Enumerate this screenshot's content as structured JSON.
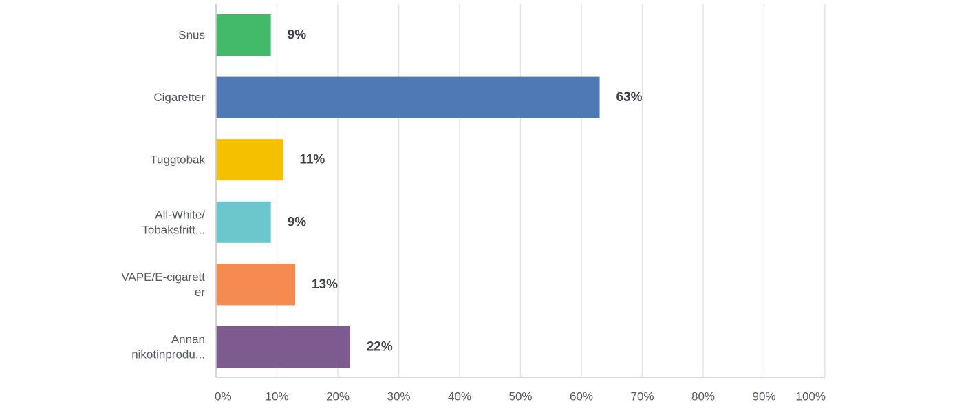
{
  "chart_data": {
    "type": "bar",
    "orientation": "horizontal",
    "categories": [
      [
        "Snus"
      ],
      [
        "Cigaretter"
      ],
      [
        "Tuggtobak"
      ],
      [
        "All-White/",
        "Tobaksfritt..."
      ],
      [
        "VAPE/E-cigarett",
        "er"
      ],
      [
        "Annan",
        "nikotinprodu..."
      ]
    ],
    "values": [
      9,
      63,
      11,
      9,
      13,
      22
    ],
    "data_labels": [
      "9%",
      "63%",
      "11%",
      "9%",
      "13%",
      "22%"
    ],
    "colors": [
      "#43b96a",
      "#4e79b4",
      "#f5c000",
      "#6cc7cd",
      "#f58b51",
      "#7d5b90"
    ],
    "x_ticks": [
      "0%",
      "10%",
      "20%",
      "30%",
      "40%",
      "50%",
      "60%",
      "70%",
      "80%",
      "90%",
      "100%"
    ],
    "xlim": [
      0,
      100
    ],
    "grid": true,
    "legend": "none"
  }
}
